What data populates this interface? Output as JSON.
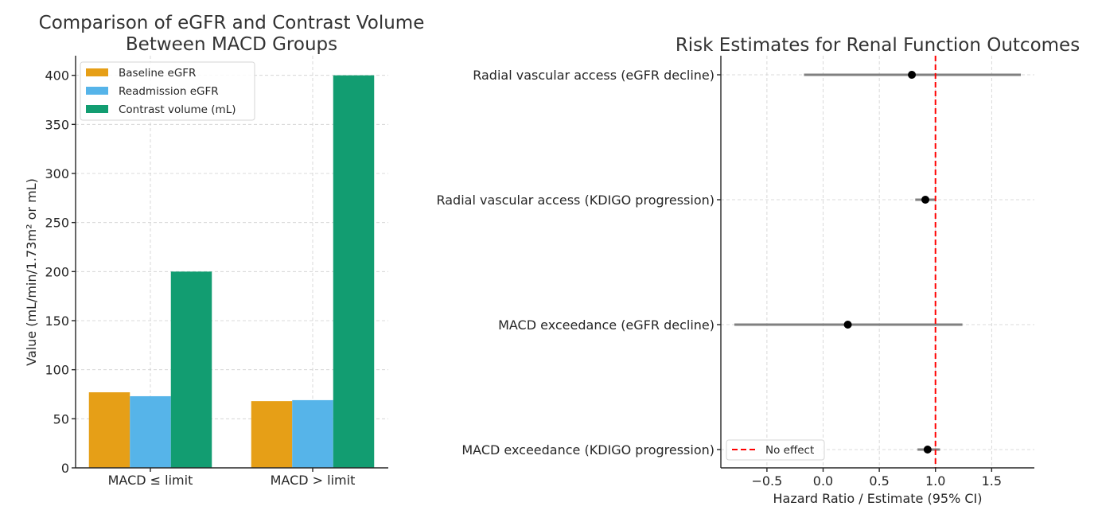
{
  "chart_data": [
    {
      "type": "bar",
      "title": "Comparison of eGFR and Contrast Volume\nBetween MACD Groups",
      "title_lines": [
        "Comparison of eGFR and Contrast Volume",
        "Between MACD Groups"
      ],
      "xlabel": "",
      "ylabel": "Value (mL/min/1.73m² or mL)",
      "categories": [
        "MACD ≤ limit",
        "MACD > limit"
      ],
      "ylim": [
        0,
        420
      ],
      "yticks": [
        0,
        50,
        100,
        150,
        200,
        250,
        300,
        350,
        400
      ],
      "grid": true,
      "legend_position": "top-left",
      "series": [
        {
          "name": "Baseline eGFR",
          "color": "#E69F17",
          "values": [
            77,
            68
          ]
        },
        {
          "name": "Readmission eGFR",
          "color": "#56B4E9",
          "values": [
            73,
            69
          ]
        },
        {
          "name": "Contrast volume (mL)",
          "color": "#129D71",
          "values": [
            200,
            400
          ]
        }
      ]
    },
    {
      "type": "scatter",
      "subtype": "forest",
      "title": "Risk Estimates for Renal Function Outcomes",
      "xlabel": "Hazard Ratio / Estimate (95% CI)",
      "ylabel": "",
      "xlim": [
        -0.91,
        1.88
      ],
      "xticks": [
        -0.5,
        0.0,
        0.5,
        1.0,
        1.5
      ],
      "xtick_labels": [
        "−0.5",
        "0.0",
        "0.5",
        "1.0",
        "1.5"
      ],
      "grid": true,
      "legend_position": "bottom-left",
      "reference_line": {
        "value": 1.0,
        "label": "No effect",
        "color": "#FF0000"
      },
      "point_color": "#000000",
      "ci_color": "#808080",
      "rows": [
        {
          "label": "Radial vascular access (eGFR decline)",
          "estimate": 0.79,
          "lower": -0.17,
          "upper": 1.76
        },
        {
          "label": "Radial vascular access (KDIGO progression)",
          "estimate": 0.91,
          "lower": 0.82,
          "upper": 1.0
        },
        {
          "label": "MACD exceedance (eGFR decline)",
          "estimate": 0.22,
          "lower": -0.79,
          "upper": 1.24
        },
        {
          "label": "MACD exceedance (KDIGO progression)",
          "estimate": 0.93,
          "lower": 0.84,
          "upper": 1.04
        }
      ]
    }
  ]
}
